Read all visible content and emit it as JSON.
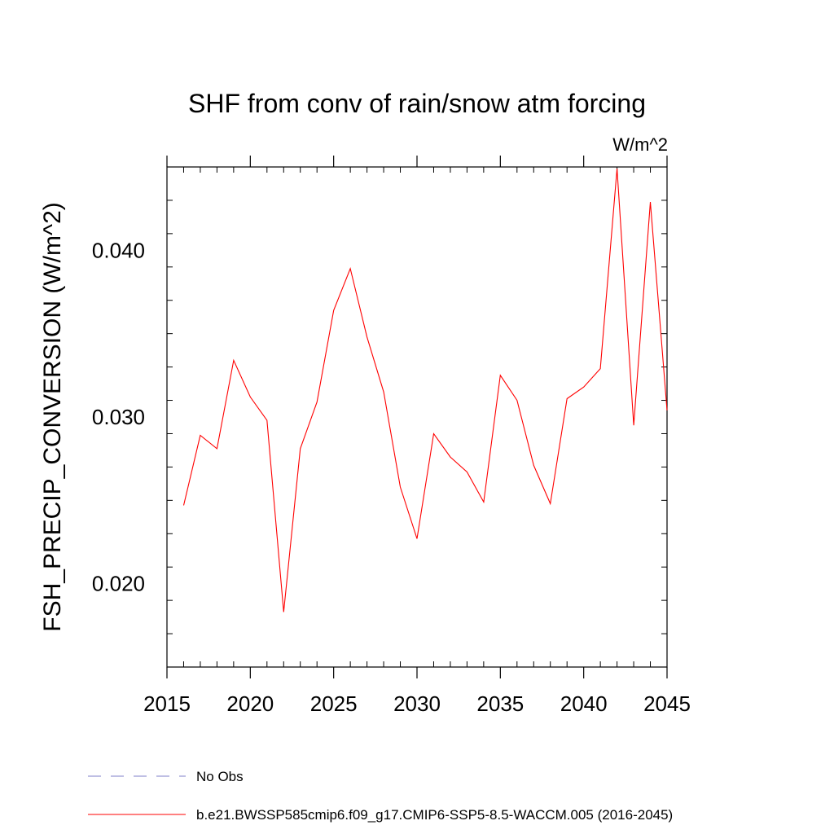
{
  "chart_data": {
    "type": "line",
    "title": "SHF from conv of rain/snow atm forcing",
    "units_label": "W/m^2",
    "ylabel": "FSH_PRECIP_CONVERSION  (W/m^2)",
    "xlabel": "",
    "xlim": [
      2015,
      2045
    ],
    "ylim": [
      0.015,
      0.045
    ],
    "x_ticks": [
      2015,
      2020,
      2025,
      2030,
      2035,
      2040,
      2045
    ],
    "x_tick_labels": [
      "2015",
      "2020",
      "2025",
      "2030",
      "2035",
      "2040",
      "2045"
    ],
    "y_ticks": [
      0.02,
      0.03,
      0.04
    ],
    "y_tick_labels": [
      "0.020",
      "0.030",
      "0.040"
    ],
    "grid": false,
    "legend_position": "bottom",
    "series": [
      {
        "name": "b.e21.BWSSP585cmip6.f09_g17.CMIP6-SSP5-8.5-WACCM.005 (2016-2045)",
        "color": "#ff0000",
        "style": "solid",
        "x": [
          2016,
          2017,
          2018,
          2019,
          2020,
          2021,
          2022,
          2023,
          2024,
          2025,
          2026,
          2027,
          2028,
          2029,
          2030,
          2031,
          2032,
          2033,
          2034,
          2035,
          2036,
          2037,
          2038,
          2039,
          2040,
          2041,
          2042,
          2043,
          2044,
          2045
        ],
        "values": [
          0.0247,
          0.0289,
          0.0281,
          0.0334,
          0.0312,
          0.0298,
          0.0183,
          0.0281,
          0.0309,
          0.0364,
          0.0389,
          0.0348,
          0.0315,
          0.0258,
          0.0227,
          0.029,
          0.0276,
          0.0267,
          0.0249,
          0.0325,
          0.031,
          0.0271,
          0.0248,
          0.0311,
          0.0318,
          0.0329,
          0.0449,
          0.0295,
          0.0429,
          0.0304
        ]
      }
    ],
    "legend": [
      {
        "label": "No Obs",
        "color": "#7f7fc8",
        "style": "dashed"
      },
      {
        "label": "b.e21.BWSSP585cmip6.f09_g17.CMIP6-SSP5-8.5-WACCM.005 (2016-2045)",
        "color": "#ff0000",
        "style": "solid"
      }
    ]
  }
}
